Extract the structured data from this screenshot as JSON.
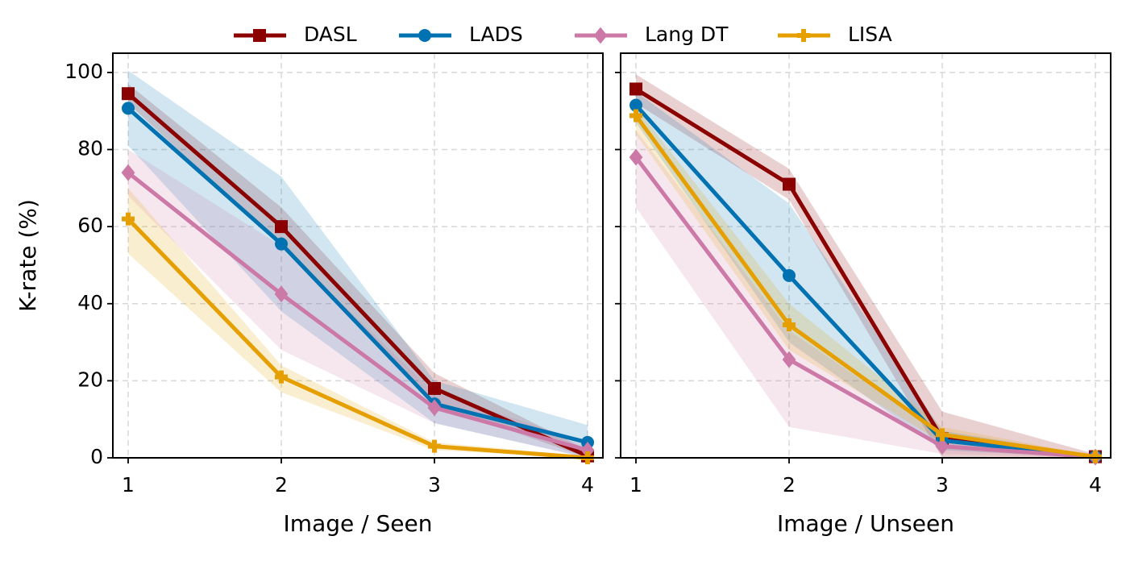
{
  "chart_data": [
    {
      "type": "line",
      "xlabel": "Image / Seen",
      "ylabel": "K-rate (%)",
      "x": [
        1,
        2,
        3,
        4
      ],
      "xlim": [
        0.9,
        4.1
      ],
      "xticks": [
        1,
        2,
        3,
        4
      ],
      "ylim": [
        0,
        105
      ],
      "yticks": [
        0,
        20,
        40,
        60,
        80,
        100
      ],
      "grid": true,
      "series": [
        {
          "name": "DASL",
          "color": "#8b0000",
          "marker": "square",
          "values": [
            94.5,
            60,
            18,
            0.5
          ],
          "lower": [
            92,
            55,
            14,
            0
          ],
          "upper": [
            97,
            65,
            22,
            2
          ]
        },
        {
          "name": "LADS",
          "color": "#0072b2",
          "marker": "circle",
          "values": [
            90.7,
            55.5,
            14,
            4
          ],
          "lower": [
            81,
            38,
            9,
            0
          ],
          "upper": [
            100.5,
            73,
            20,
            8.5
          ]
        },
        {
          "name": "Lang DT",
          "color": "#cc79a7",
          "marker": "diamond",
          "values": [
            74,
            42.5,
            13,
            2
          ],
          "lower": [
            68,
            28,
            9,
            0
          ],
          "upper": [
            80,
            55,
            17,
            4
          ]
        },
        {
          "name": "LISA",
          "color": "#e69f00",
          "marker": "plus",
          "values": [
            62,
            21,
            3,
            0
          ],
          "lower": [
            53,
            17,
            2,
            0
          ],
          "upper": [
            70,
            24,
            4,
            0.5
          ]
        }
      ]
    },
    {
      "type": "line",
      "xlabel": "Image / Unseen",
      "x": [
        1,
        2,
        3,
        4
      ],
      "xlim": [
        0.9,
        4.1
      ],
      "xticks": [
        1,
        2,
        3,
        4
      ],
      "ylim": [
        0,
        105
      ],
      "yticks": [
        0,
        20,
        40,
        60,
        80,
        100
      ],
      "grid": true,
      "series": [
        {
          "color": "#8b0000",
          "marker": "square",
          "values": [
            95.7,
            71,
            5,
            0.3
          ],
          "lower": [
            92,
            67,
            0,
            0
          ],
          "upper": [
            99.5,
            75,
            12,
            1
          ]
        },
        {
          "color": "#0072b2",
          "marker": "circle",
          "values": [
            91.5,
            47.3,
            4.5,
            0.3
          ],
          "lower": [
            87,
            30,
            2,
            0
          ],
          "upper": [
            95,
            66,
            7,
            0.5
          ]
        },
        {
          "color": "#cc79a7",
          "marker": "diamond",
          "values": [
            78,
            25.5,
            3,
            0.2
          ],
          "lower": [
            65,
            8,
            1,
            0
          ],
          "upper": [
            85,
            33,
            6,
            0.5
          ]
        },
        {
          "color": "#e69f00",
          "marker": "plus",
          "values": [
            88.8,
            34.5,
            6,
            0.3
          ],
          "lower": [
            84,
            28,
            4,
            0
          ],
          "upper": [
            91,
            40,
            8,
            0.5
          ]
        }
      ]
    }
  ]
}
